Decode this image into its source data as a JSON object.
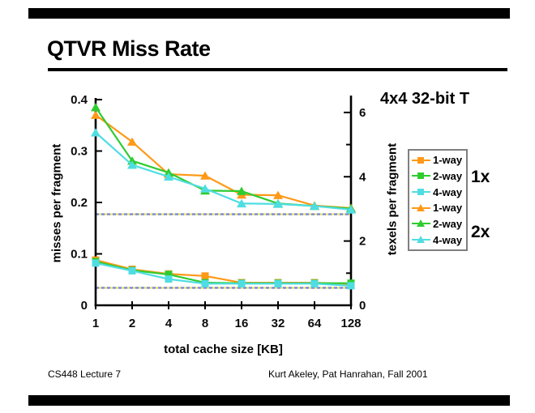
{
  "slide": {
    "title": "QTVR Miss Rate",
    "annotation": "4x4 32-bit T",
    "footer_left": "CS448 Lecture 7",
    "footer_right": "Kurt Akeley, Pat Hanrahan, Fall 2001"
  },
  "chart_data": {
    "type": "line",
    "title": "",
    "xlabel": "total cache size [KB]",
    "ylabel_left": "misses per fragment",
    "ylabel_right": "texels per fragment",
    "x_scale": "log2_categories",
    "categories": [
      1,
      2,
      4,
      8,
      16,
      32,
      64,
      128
    ],
    "ylim_left": [
      0,
      0.4
    ],
    "ylim_right": [
      0,
      6.4
    ],
    "grid": false,
    "legend_position": "right",
    "left_ticks": [
      {
        "value": 0,
        "label": "0"
      },
      {
        "value": 0.1,
        "label": "0.1"
      },
      {
        "value": 0.2,
        "label": "0.2"
      },
      {
        "value": 0.3,
        "label": "0.3"
      },
      {
        "value": 0.4,
        "label": "0.4"
      }
    ],
    "right_ticks": [
      {
        "value": 0,
        "label": "0"
      },
      {
        "value": 2,
        "label": "2"
      },
      {
        "value": 4,
        "label": "4"
      },
      {
        "value": 6,
        "label": "6"
      }
    ],
    "right_minor_ticks": [
      1,
      3,
      5
    ],
    "legend_groups": [
      {
        "label": "1x"
      },
      {
        "label": "2x"
      }
    ],
    "series": [
      {
        "name": "1-way",
        "group": "1x",
        "marker": "square",
        "color": "#ff9918",
        "values": [
          0.088,
          0.07,
          0.061,
          0.057,
          0.044,
          0.044,
          0.044,
          0.041
        ]
      },
      {
        "name": "2-way",
        "group": "1x",
        "marker": "square",
        "color": "#2fcc30",
        "values": [
          0.085,
          0.068,
          0.06,
          0.044,
          0.043,
          0.043,
          0.043,
          0.043
        ]
      },
      {
        "name": "4-way",
        "group": "1x",
        "marker": "square",
        "color": "#4fdde2",
        "values": [
          0.082,
          0.067,
          0.051,
          0.042,
          0.042,
          0.042,
          0.042,
          0.038
        ]
      },
      {
        "name": "1-way",
        "group": "2x",
        "marker": "triangle",
        "color": "#ff9918",
        "values": [
          0.37,
          0.318,
          0.255,
          0.252,
          0.215,
          0.214,
          0.194,
          0.189
        ]
      },
      {
        "name": "2-way",
        "group": "2x",
        "marker": "triangle",
        "color": "#2fcc30",
        "values": [
          0.385,
          0.281,
          0.258,
          0.223,
          0.222,
          0.198,
          0.193,
          0.188
        ]
      },
      {
        "name": "4-way",
        "group": "2x",
        "marker": "triangle",
        "color": "#4fdde2",
        "values": [
          0.336,
          0.273,
          0.25,
          0.227,
          0.198,
          0.197,
          0.193,
          0.186
        ]
      }
    ],
    "reference_lines": [
      {
        "value": 0.177,
        "style": "dashed",
        "base_color": "#e8e468",
        "dash_color": "#7b87e6"
      },
      {
        "value": 0.034,
        "style": "dashed",
        "base_color": "#e8e468",
        "dash_color": "#7b87e6"
      }
    ]
  }
}
